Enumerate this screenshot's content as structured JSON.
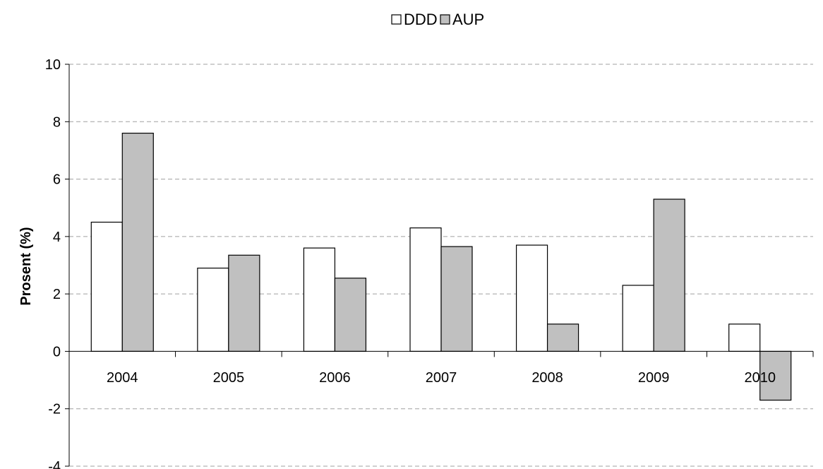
{
  "chart_data": {
    "type": "bar",
    "categories": [
      "2004",
      "2005",
      "2006",
      "2007",
      "2008",
      "2009",
      "2010"
    ],
    "series": [
      {
        "name": "DDD",
        "color": "#ffffff",
        "values": [
          4.5,
          2.9,
          3.6,
          4.3,
          3.7,
          2.3,
          0.95
        ]
      },
      {
        "name": "AUP",
        "color": "#c0c0c0",
        "values": [
          7.6,
          3.35,
          2.55,
          3.65,
          0.95,
          5.3,
          -1.7
        ]
      }
    ],
    "ylabel": "Prosent (%)",
    "xlabel": "",
    "ylim": [
      -4,
      10
    ],
    "yticks": [
      10,
      8,
      6,
      4,
      2,
      0,
      -2,
      -4
    ],
    "ytick_labels": [
      "10",
      "8",
      "6",
      "4",
      "2",
      "0",
      "-2",
      "-4"
    ],
    "grid": true,
    "legend_position": "top-center"
  }
}
